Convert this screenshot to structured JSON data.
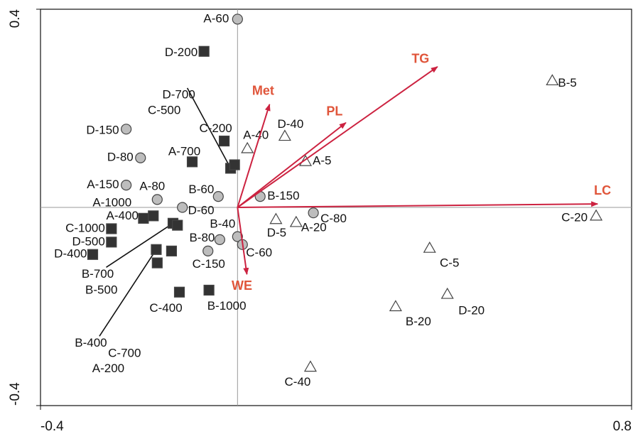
{
  "chart_data": {
    "type": "biplot",
    "xlim": [
      -0.4,
      0.8
    ],
    "ylim": [
      -0.4,
      0.4
    ],
    "xticks": [
      -0.4,
      0.8
    ],
    "yticks": [
      -0.4,
      0.4
    ],
    "groups": [
      {
        "marker": "circle",
        "color": "#bdbdbd",
        "labels": [
          "A-60",
          "D-150",
          "D-80",
          "A-150",
          "A-80",
          "D-60",
          "B-60",
          "B-150",
          "C-80",
          "B-40",
          "C-60",
          "B-80",
          "C-150"
        ],
        "x": [
          0.0,
          -0.226,
          -0.197,
          -0.226,
          -0.163,
          -0.112,
          -0.039,
          0.046,
          0.154,
          0.0,
          0.01,
          -0.036,
          -0.06
        ],
        "y": [
          0.38,
          0.158,
          0.1,
          0.045,
          0.016,
          0.0,
          0.022,
          0.022,
          -0.011,
          -0.059,
          -0.075,
          -0.065,
          -0.088
        ]
      },
      {
        "marker": "square",
        "color": "#333333",
        "labels": [
          "D-200",
          "C-200",
          "A-700",
          "D-700",
          "C-500",
          "A-400",
          "A-1000",
          "C-1000",
          "D-500",
          "D-400",
          "B-700",
          "B-500",
          "B-400",
          "C-700",
          "A-200",
          "C-400",
          "B-1000"
        ],
        "x": [
          -0.068,
          -0.027,
          -0.092,
          -0.014,
          -0.006,
          -0.191,
          -0.171,
          -0.256,
          -0.256,
          -0.294,
          -0.131,
          -0.122,
          -0.165,
          -0.163,
          -0.134,
          -0.118,
          -0.058
        ],
        "y": [
          0.315,
          0.134,
          0.092,
          0.079,
          0.086,
          -0.022,
          -0.017,
          -0.043,
          -0.07,
          -0.095,
          -0.032,
          -0.036,
          -0.085,
          -0.112,
          -0.088,
          -0.171,
          -0.167
        ]
      },
      {
        "marker": "triangle",
        "color": "#ffffff",
        "labels": [
          "B-5",
          "A-40",
          "D-40",
          "A-5",
          "D-5",
          "A-20",
          "C-20",
          "C-5",
          "D-20",
          "B-20",
          "C-40"
        ],
        "x": [
          0.639,
          0.02,
          0.096,
          0.138,
          0.078,
          0.119,
          0.728,
          0.39,
          0.426,
          0.321,
          0.148
        ],
        "y": [
          0.256,
          0.119,
          0.144,
          0.093,
          -0.024,
          -0.03,
          -0.017,
          -0.082,
          -0.175,
          -0.2,
          -0.322
        ]
      }
    ],
    "vectors": {
      "color": "#cc2240",
      "label_color": "#e0553a",
      "labels": [
        "Met",
        "TG",
        "PL",
        "LC",
        "WE"
      ],
      "x": [
        0.065,
        0.406,
        0.22,
        0.731,
        0.019
      ],
      "y": [
        0.208,
        0.284,
        0.171,
        0.007,
        -0.135
      ]
    }
  }
}
